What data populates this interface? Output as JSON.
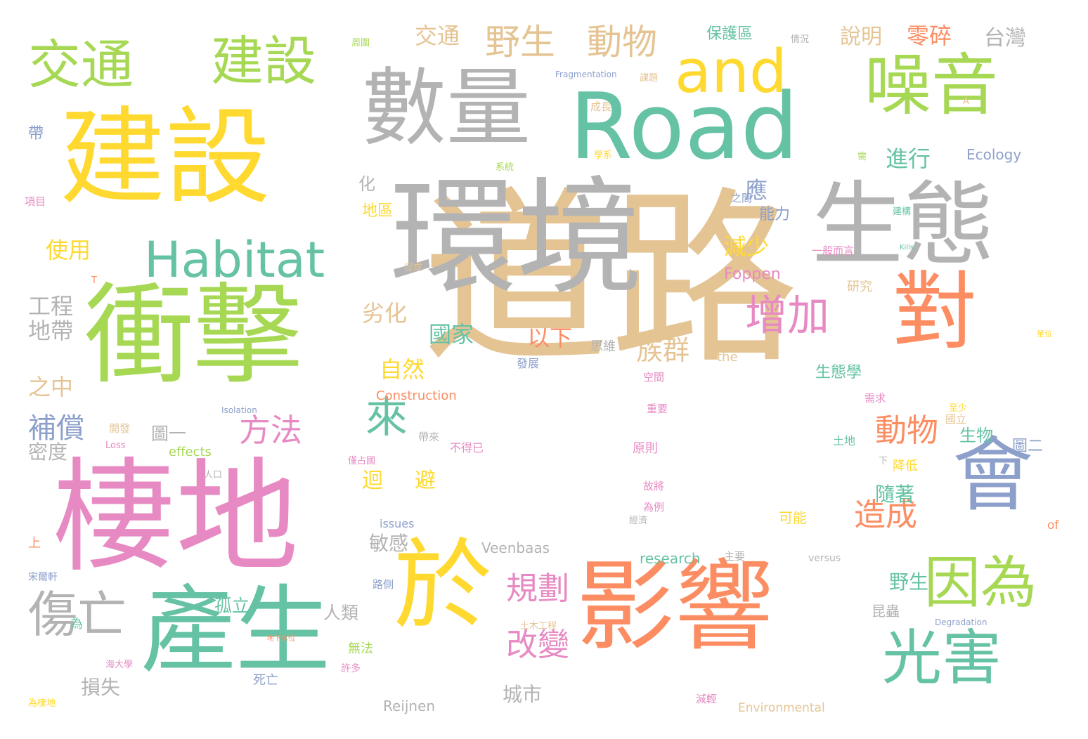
{
  "palette": {
    "green": "#66c2a5",
    "orange": "#fc8d62",
    "blue": "#8da0cb",
    "pink": "#e78ac3",
    "lime": "#a6d854",
    "yellow": "#ffd92f",
    "tan": "#e5c494",
    "gray": "#b3b3b3"
  },
  "words": [
    {
      "text": "道路",
      "color": "tan"
    },
    {
      "text": "環境",
      "color": "gray"
    },
    {
      "text": "棲地",
      "color": "pink"
    },
    {
      "text": "影響",
      "color": "orange"
    },
    {
      "text": "衝擊",
      "color": "lime"
    },
    {
      "text": "建設",
      "color": "yellow"
    },
    {
      "text": "Road",
      "color": "green"
    },
    {
      "text": "產生",
      "color": "green"
    },
    {
      "text": "生態",
      "color": "gray"
    },
    {
      "text": "數量",
      "color": "gray"
    },
    {
      "text": "於",
      "color": "yellow"
    },
    {
      "text": "對",
      "color": "orange"
    },
    {
      "text": "會",
      "color": "blue"
    },
    {
      "text": "噪音",
      "color": "lime"
    },
    {
      "text": "and",
      "color": "yellow"
    },
    {
      "text": "光害",
      "color": "green"
    },
    {
      "text": "因為",
      "color": "lime"
    },
    {
      "text": "建設",
      "color": "lime"
    },
    {
      "text": "交通",
      "color": "lime"
    },
    {
      "text": "Habitat",
      "color": "green"
    },
    {
      "text": "傷亡",
      "color": "gray"
    },
    {
      "text": "增加",
      "color": "pink"
    },
    {
      "text": "來",
      "color": "green"
    },
    {
      "text": "野生",
      "color": "tan"
    },
    {
      "text": "動物",
      "color": "tan"
    },
    {
      "text": "規劃",
      "color": "pink"
    },
    {
      "text": "改變",
      "color": "pink"
    },
    {
      "text": "動物",
      "color": "orange"
    },
    {
      "text": "造成",
      "color": "orange"
    },
    {
      "text": "方法",
      "color": "pink"
    },
    {
      "text": "族群",
      "color": "tan"
    },
    {
      "text": "補償",
      "color": "blue"
    },
    {
      "text": "交通",
      "color": "tan"
    },
    {
      "text": "零碎",
      "color": "orange"
    },
    {
      "text": "台灣",
      "color": "gray"
    },
    {
      "text": "說明",
      "color": "tan"
    },
    {
      "text": "保護區",
      "color": "green"
    },
    {
      "text": "使用",
      "color": "yellow"
    },
    {
      "text": "應",
      "color": "blue"
    },
    {
      "text": "減少",
      "color": "yellow"
    },
    {
      "text": "進行",
      "color": "green"
    },
    {
      "text": "以下",
      "color": "orange"
    },
    {
      "text": "國家",
      "color": "green"
    },
    {
      "text": "自然",
      "color": "yellow"
    },
    {
      "text": "劣化",
      "color": "tan"
    },
    {
      "text": "工程",
      "color": "gray"
    },
    {
      "text": "地帶",
      "color": "gray"
    },
    {
      "text": "之中",
      "color": "tan"
    },
    {
      "text": "密度",
      "color": "gray"
    },
    {
      "text": "損失",
      "color": "gray"
    },
    {
      "text": "城市",
      "color": "gray"
    },
    {
      "text": "敏感",
      "color": "gray"
    },
    {
      "text": "迴",
      "color": "yellow"
    },
    {
      "text": "避",
      "color": "yellow"
    },
    {
      "text": "隨著",
      "color": "green"
    },
    {
      "text": "野生",
      "color": "green"
    },
    {
      "text": "昆蟲",
      "color": "gray"
    },
    {
      "text": "生物",
      "color": "green"
    },
    {
      "text": "圖二",
      "color": "blue"
    },
    {
      "text": "圖一",
      "color": "gray"
    },
    {
      "text": "孤立",
      "color": "green"
    },
    {
      "text": "人類",
      "color": "gray"
    },
    {
      "text": "生態學",
      "color": "green"
    },
    {
      "text": "能力",
      "color": "blue"
    },
    {
      "text": "地區",
      "color": "yellow"
    },
    {
      "text": "Ecology",
      "color": "blue"
    },
    {
      "text": "Foppen",
      "color": "pink"
    },
    {
      "text": "Veenbaas",
      "color": "gray"
    },
    {
      "text": "Reijnen",
      "color": "gray"
    },
    {
      "text": "research",
      "color": "green"
    },
    {
      "text": "Construction",
      "color": "orange"
    },
    {
      "text": "effects",
      "color": "lime"
    },
    {
      "text": "Environmental",
      "color": "tan"
    },
    {
      "text": "issues",
      "color": "blue"
    },
    {
      "text": "versus",
      "color": "gray"
    },
    {
      "text": "the",
      "color": "tan"
    },
    {
      "text": "of",
      "color": "orange"
    },
    {
      "text": "Fragmentation",
      "color": "blue"
    },
    {
      "text": "Degradation",
      "color": "blue"
    },
    {
      "text": "Isolation",
      "color": "blue"
    },
    {
      "text": "Loss",
      "color": "pink"
    },
    {
      "text": "A",
      "color": "tan"
    },
    {
      "text": "T",
      "color": "orange"
    },
    {
      "text": "可能",
      "color": "yellow"
    },
    {
      "text": "降低",
      "color": "yellow"
    },
    {
      "text": "原則",
      "color": "pink"
    },
    {
      "text": "研究",
      "color": "tan"
    },
    {
      "text": "思維",
      "color": "gray"
    },
    {
      "text": "發展",
      "color": "blue"
    },
    {
      "text": "空間",
      "color": "pink"
    },
    {
      "text": "土地",
      "color": "green"
    },
    {
      "text": "國立",
      "color": "tan"
    },
    {
      "text": "需求",
      "color": "pink"
    },
    {
      "text": "至少",
      "color": "yellow"
    },
    {
      "text": "一般而言",
      "color": "pink"
    },
    {
      "text": "之間",
      "color": "blue"
    },
    {
      "text": "建構",
      "color": "green"
    },
    {
      "text": "重要",
      "color": "pink"
    },
    {
      "text": "不得已",
      "color": "pink"
    },
    {
      "text": "帶來",
      "color": "gray"
    },
    {
      "text": "故將",
      "color": "pink"
    },
    {
      "text": "為例",
      "color": "pink"
    },
    {
      "text": "主要",
      "color": "gray"
    },
    {
      "text": "減輕",
      "color": "pink"
    },
    {
      "text": "無法",
      "color": "lime"
    },
    {
      "text": "死亡",
      "color": "blue"
    },
    {
      "text": "許多",
      "color": "pink"
    },
    {
      "text": "土木工程",
      "color": "tan"
    },
    {
      "text": "路側",
      "color": "blue"
    },
    {
      "text": "為",
      "color": "green"
    },
    {
      "text": "上",
      "color": "orange"
    },
    {
      "text": "人口",
      "color": "gray"
    },
    {
      "text": "開發",
      "color": "tan"
    },
    {
      "text": "促成",
      "color": "tan"
    },
    {
      "text": "化",
      "color": "gray"
    },
    {
      "text": "帶",
      "color": "blue"
    },
    {
      "text": "系統",
      "color": "lime"
    },
    {
      "text": "學系",
      "color": "yellow"
    },
    {
      "text": "成長",
      "color": "tan"
    },
    {
      "text": "課題",
      "color": "tan"
    },
    {
      "text": "周圍",
      "color": "lime"
    },
    {
      "text": "情況",
      "color": "gray"
    },
    {
      "text": "需",
      "color": "lime"
    },
    {
      "text": "下",
      "color": "gray"
    },
    {
      "text": "項目",
      "color": "pink"
    },
    {
      "text": "宋爾軒",
      "color": "blue"
    },
    {
      "text": "為棲地",
      "color": "yellow"
    },
    {
      "text": "海大學",
      "color": "pink"
    },
    {
      "text": "僅占國",
      "color": "pink"
    },
    {
      "text": "單位",
      "color": "yellow"
    },
    {
      "text": "經濟",
      "color": "gray"
    },
    {
      "text": "地下水位",
      "color": "orange"
    },
    {
      "text": "Kills",
      "color": "green"
    }
  ]
}
